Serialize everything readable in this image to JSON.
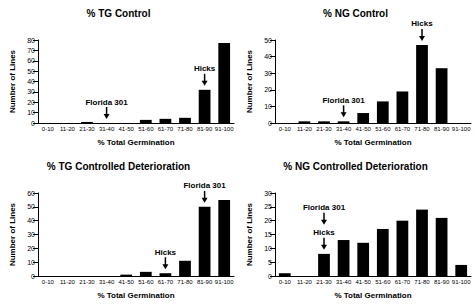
{
  "chart_data": [
    {
      "type": "bar",
      "title": "% TG Control",
      "x_label": "% Total Germination",
      "y_label": "Number of Lines",
      "categories": [
        "0-10",
        "11-20",
        "21-30",
        "31-40",
        "41-50",
        "51-60",
        "61-70",
        "71-80",
        "81-90",
        "91-100"
      ],
      "values": [
        0,
        0,
        1,
        0,
        0,
        3,
        4,
        5,
        32,
        77
      ],
      "color": "#000000",
      "ylim": [
        0,
        80
      ],
      "yticks": [
        0,
        10,
        20,
        30,
        40,
        50,
        60,
        70,
        80
      ],
      "grid": false,
      "annotations": [
        {
          "text": "Florida 301",
          "category": "31-40"
        },
        {
          "text": "Hicks",
          "category": "81-90"
        }
      ]
    },
    {
      "type": "bar",
      "title": "% NG Control",
      "x_label": "% Total Germination",
      "y_label": "Number of Lines",
      "categories": [
        "0-10",
        "11-20",
        "21-30",
        "31-40",
        "41-50",
        "51-60",
        "61-70",
        "71-80",
        "81-90",
        "91-100"
      ],
      "values": [
        0,
        1,
        1,
        1,
        6,
        13,
        19,
        47,
        33,
        0
      ],
      "color": "#000000",
      "ylim": [
        0,
        50
      ],
      "yticks": [
        0,
        10,
        20,
        30,
        40,
        50
      ],
      "grid": false,
      "annotations": [
        {
          "text": "Florida 301",
          "category": "31-40"
        },
        {
          "text": "Hicks",
          "category": "71-80"
        }
      ]
    },
    {
      "type": "bar",
      "title": "% TG Controlled Deterioration",
      "x_label": "% Total Germination",
      "y_label": "Number of Lines",
      "categories": [
        "0-10",
        "11-20",
        "21-30",
        "31-40",
        "41-50",
        "51-60",
        "61-70",
        "71-80",
        "81-90",
        "91-100"
      ],
      "values": [
        0,
        0,
        0,
        0,
        1,
        3,
        2,
        11,
        50,
        55
      ],
      "color": "#000000",
      "ylim": [
        0,
        60
      ],
      "yticks": [
        0,
        10,
        20,
        30,
        40,
        50,
        60
      ],
      "grid": false,
      "annotations": [
        {
          "text": "Florida 301",
          "category": "81-90"
        },
        {
          "text": "Hicks",
          "category": "61-70"
        }
      ]
    },
    {
      "type": "bar",
      "title": "% NG Controlled Deterioration",
      "x_label": "% Total Germination",
      "y_label": "Number of Lines",
      "categories": [
        "0-10",
        "11-20",
        "21-30",
        "31-40",
        "41-50",
        "51-60",
        "61-70",
        "71-80",
        "81-90",
        "91-100"
      ],
      "values": [
        1,
        0,
        8,
        13,
        12,
        17,
        20,
        24,
        21,
        4
      ],
      "color": "#000000",
      "ylim": [
        0,
        30
      ],
      "yticks": [
        0,
        5,
        10,
        15,
        20,
        25,
        30
      ],
      "grid": false,
      "annotations": [
        {
          "text": "Florida 301",
          "category": "21-30"
        },
        {
          "text": "Hicks",
          "category": "21-30"
        }
      ]
    }
  ]
}
